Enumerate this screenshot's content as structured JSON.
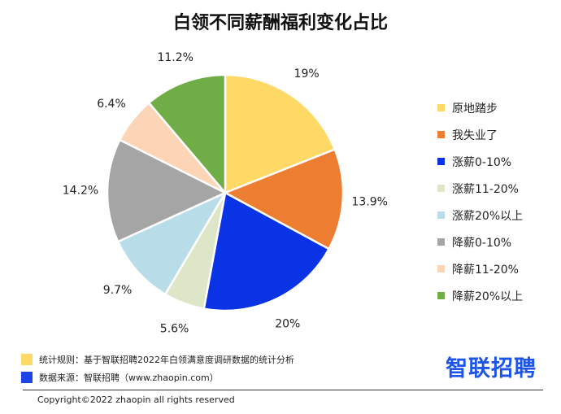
{
  "chart_data": {
    "type": "pie",
    "title": "白领不同薪酬福利变化占比",
    "categories": [
      "原地踏步",
      "我失业了",
      "涨薪0-10%",
      "涨薪11-20%",
      "涨薪20%以上",
      "降薪0-10%",
      "降薪11-20%",
      "降薪20%以上"
    ],
    "values": [
      19,
      13.9,
      20,
      5.6,
      9.7,
      14.2,
      6.4,
      11.2
    ],
    "value_labels": [
      "19%",
      "13.9%",
      "20%",
      "5.6%",
      "9.7%",
      "14.2%",
      "6.4%",
      "11.2%"
    ],
    "colors": [
      "#FFD966",
      "#ED7D31",
      "#0A33E6",
      "#DDE7C7",
      "#B8DDE8",
      "#A5A5A5",
      "#FBD5B5",
      "#70AD47"
    ],
    "legend_position": "right"
  },
  "notes": {
    "rule_label": "统计规则：基于智联招聘2022年白领满意度调研数据的统计分析",
    "source_label": "数据来源：智联招聘（www.zhaopin.com）",
    "rule_color": "#FFD966",
    "source_color": "#1D46E8"
  },
  "brand": {
    "logo_text": "智联招聘",
    "color": "#1D55E8"
  },
  "footer": {
    "copyright": "Copyright©2022 zhaopin all rights reserved"
  }
}
